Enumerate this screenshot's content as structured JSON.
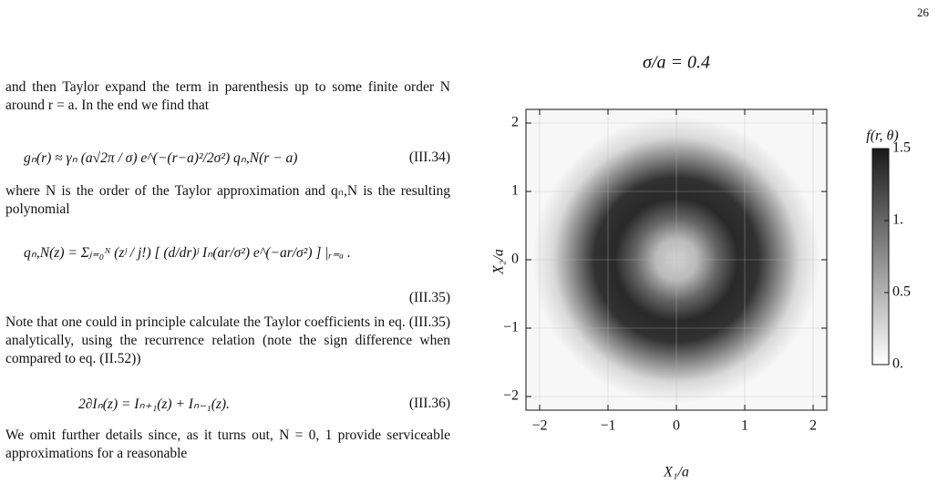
{
  "page_number": "26",
  "text": {
    "paragraphs": [
      "and then Taylor expand the term in parenthesis up to some finite order N around r = a. In the end we find that",
      "where N is the order of the Taylor approximation and qₙ,N is the resulting polynomial",
      "Note that one could in principle calculate the Taylor coefficients in eq. (III.35) analytically, using the recurrence relation (note the sign difference when compared to eq. (II.52))",
      "We omit further details since, as it turns out, N = 0, 1 provide serviceable approximations for a reasonable"
    ],
    "equations": [
      {
        "body": "gₙ(r) ≈ γₙ (a√2π / σ) e^(−(r−a)²/2σ²) qₙ,N(r − a)",
        "label": "(III.34)"
      },
      {
        "body": "qₙ,N(z) = Σⱼ₌₀ᴺ (zʲ / j!) [ (d/dr)ʲ Iₙ(ar/σ²) e^(−ar/σ²) ] |ᵣ₌ₐ .",
        "label": "(III.35)"
      },
      {
        "body": "2∂Iₙ(z) = Iₙ₊₁(z) + Iₙ₋₁(z).",
        "label": "(III.36)"
      }
    ]
  },
  "chart_data": {
    "type": "density",
    "title": "σ/a = 0.4",
    "x_label": "X₁/a",
    "y_label": "X₂/a",
    "xlim": [
      -2.2,
      2.2
    ],
    "ylim": [
      -2.2,
      2.2
    ],
    "xticks": [
      {
        "value": -2,
        "label": "−2"
      },
      {
        "value": -1,
        "label": "−1"
      },
      0,
      1,
      2
    ],
    "yticks": [
      {
        "value": -2,
        "label": "−2"
      },
      {
        "value": -1,
        "label": "−1"
      },
      0,
      1,
      2
    ],
    "grid": true,
    "radial_profile": {
      "r": [
        0,
        0.3,
        0.6,
        0.9,
        1.2,
        1.5,
        1.8,
        2.1
      ],
      "values": [
        0.3,
        0.45,
        1.0,
        1.4,
        1.35,
        0.8,
        0.25,
        0.05
      ]
    },
    "colorbar": {
      "label": "f(r, θ)",
      "lim": [
        0,
        1.5
      ],
      "ticks": [
        {
          "value": 0,
          "label": "0."
        },
        0.5,
        {
          "value": 1,
          "label": "1."
        },
        1.5
      ],
      "colors": [
        "#ffffff",
        "#1a1a1a"
      ]
    }
  }
}
